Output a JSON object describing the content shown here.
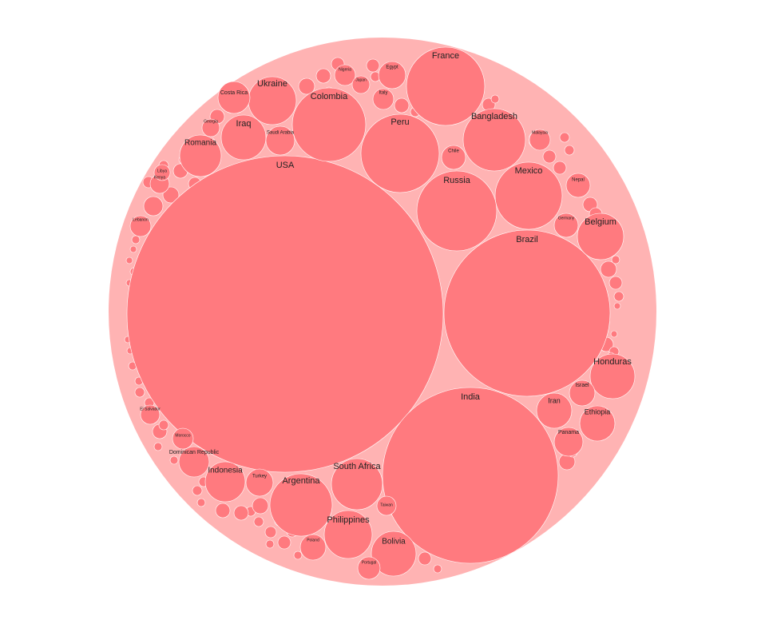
{
  "chart_data": {
    "type": "circle-packing",
    "title": "",
    "colors": {
      "root_fill": "#ffb3b3",
      "node_fill": "#ff7a7f",
      "node_stroke": "#ffffff",
      "label_color": "#222222"
    },
    "labeled_nodes": [
      {
        "name": "USA",
        "tier": "major"
      },
      {
        "name": "India",
        "tier": "major"
      },
      {
        "name": "Brazil",
        "tier": "major"
      },
      {
        "name": "Russia",
        "tier": "large"
      },
      {
        "name": "France",
        "tier": "large"
      },
      {
        "name": "Peru",
        "tier": "large"
      },
      {
        "name": "Colombia",
        "tier": "large"
      },
      {
        "name": "Mexico",
        "tier": "large"
      },
      {
        "name": "Argentina",
        "tier": "large"
      },
      {
        "name": "Bangladesh",
        "tier": "medium"
      },
      {
        "name": "South Africa",
        "tier": "medium"
      },
      {
        "name": "Ukraine",
        "tier": "medium"
      },
      {
        "name": "Iraq",
        "tier": "medium"
      },
      {
        "name": "Romania",
        "tier": "medium"
      },
      {
        "name": "Belgium",
        "tier": "medium"
      },
      {
        "name": "Honduras",
        "tier": "medium"
      },
      {
        "name": "Philippines",
        "tier": "medium"
      },
      {
        "name": "Bolivia",
        "tier": "medium"
      },
      {
        "name": "Indonesia",
        "tier": "medium"
      },
      {
        "name": "Iran",
        "tier": "small"
      },
      {
        "name": "Ethiopia",
        "tier": "small"
      },
      {
        "name": "Chile",
        "tier": "small"
      },
      {
        "name": "Costa Rica",
        "tier": "small"
      },
      {
        "name": "Saudi Arabia",
        "tier": "small"
      },
      {
        "name": "Turkey",
        "tier": "small"
      },
      {
        "name": "Dominican Republic",
        "tier": "small"
      },
      {
        "name": "Panama",
        "tier": "small"
      },
      {
        "name": "Israel",
        "tier": "small"
      },
      {
        "name": "Nepal",
        "tier": "small"
      },
      {
        "name": "Germany",
        "tier": "small"
      },
      {
        "name": "Egypt",
        "tier": "small"
      },
      {
        "name": "Italy",
        "tier": "small"
      },
      {
        "name": "Nigeria",
        "tier": "small"
      },
      {
        "name": "Japan",
        "tier": "small"
      },
      {
        "name": "Kenya",
        "tier": "small"
      },
      {
        "name": "Libya",
        "tier": "small"
      },
      {
        "name": "Morocco",
        "tier": "small"
      },
      {
        "name": "El Salvador",
        "tier": "small"
      },
      {
        "name": "Lebanon",
        "tier": "small"
      },
      {
        "name": "Poland",
        "tier": "small"
      },
      {
        "name": "Portugal",
        "tier": "small"
      },
      {
        "name": "Taiwan",
        "tier": "small"
      },
      {
        "name": "Georgia",
        "tier": "small"
      },
      {
        "name": "Malaysia",
        "tier": "small"
      }
    ]
  }
}
